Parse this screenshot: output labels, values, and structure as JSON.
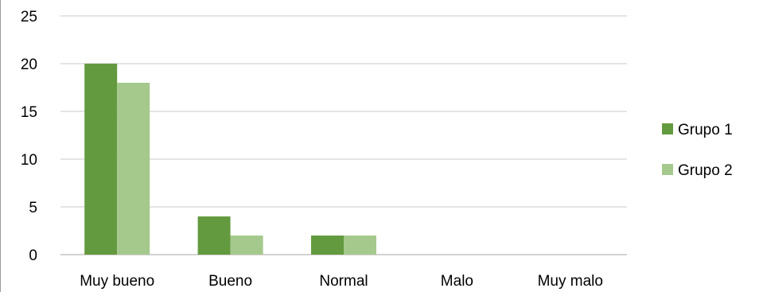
{
  "chart_data": {
    "type": "bar",
    "categories": [
      "Muy bueno",
      "Bueno",
      "Normal",
      "Malo",
      "Muy malo"
    ],
    "series": [
      {
        "name": "Grupo 1",
        "values": [
          20,
          4,
          2,
          0,
          0
        ],
        "color": "#649a3f"
      },
      {
        "name": "Grupo 2",
        "values": [
          18,
          2,
          2,
          0,
          0
        ],
        "color": "#a5c98d"
      }
    ],
    "yticks": [
      0,
      5,
      10,
      15,
      20,
      25
    ],
    "ylim": [
      0,
      25
    ],
    "grid": true,
    "legend_position": "right",
    "title": "",
    "xlabel": "",
    "ylabel": ""
  }
}
